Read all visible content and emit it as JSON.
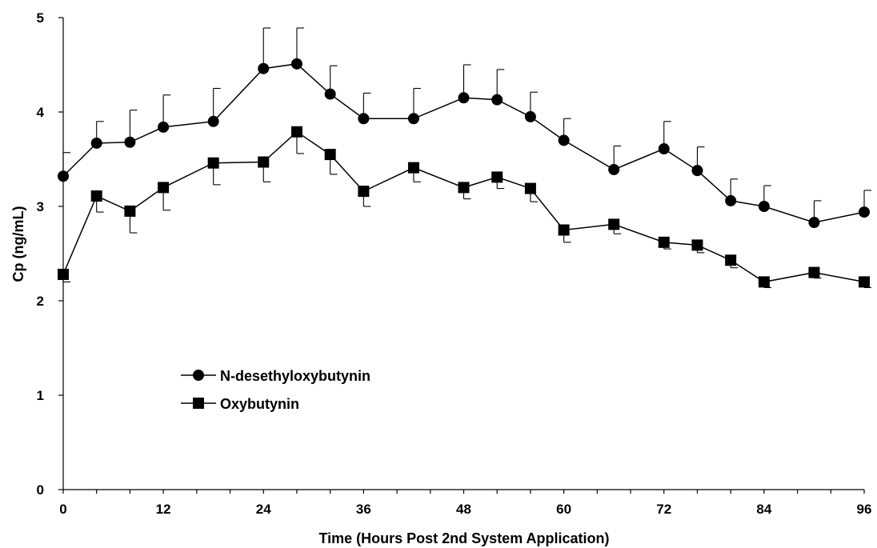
{
  "chart_data": {
    "type": "line",
    "xlabel": "Time (Hours Post 2nd System Application)",
    "ylabel": "Cp (ng/mL)",
    "xlim": [
      0,
      96
    ],
    "ylim": [
      0,
      5
    ],
    "x_ticks": [
      0,
      12,
      24,
      36,
      48,
      60,
      72,
      84,
      96
    ],
    "y_ticks": [
      0,
      1,
      2,
      3,
      4,
      5
    ],
    "x_tick_labels": [
      "0",
      "12",
      "24",
      "36",
      "48",
      "60",
      "72",
      "84",
      "96"
    ],
    "y_tick_labels": [
      "0",
      "1",
      "2",
      "3",
      "4",
      "5"
    ],
    "grid": false,
    "legend_position": "left-middle",
    "series": [
      {
        "name": "N-desethyloxybutynin",
        "marker": "circle",
        "color": "#000000",
        "x": [
          0,
          4,
          8,
          12,
          18,
          24,
          28,
          32,
          36,
          42,
          48,
          52,
          56,
          60,
          66,
          72,
          76,
          80,
          84,
          90,
          96
        ],
        "y": [
          3.32,
          3.67,
          3.68,
          3.84,
          3.9,
          4.46,
          4.51,
          4.19,
          3.93,
          3.93,
          4.15,
          4.13,
          3.95,
          3.7,
          3.39,
          3.61,
          3.38,
          3.06,
          3.0,
          2.83,
          2.94
        ],
        "error_plus": [
          0.25,
          0.23,
          0.34,
          0.34,
          0.35,
          0.43,
          0.38,
          0.3,
          0.27,
          0.32,
          0.35,
          0.32,
          0.26,
          0.23,
          0.25,
          0.29,
          0.25,
          0.23,
          0.22,
          0.23,
          0.23
        ]
      },
      {
        "name": "Oxybutynin",
        "marker": "square",
        "color": "#000000",
        "x": [
          0,
          4,
          8,
          12,
          18,
          24,
          28,
          32,
          36,
          42,
          48,
          52,
          56,
          60,
          66,
          72,
          76,
          80,
          84,
          90,
          96
        ],
        "y": [
          2.28,
          3.11,
          2.95,
          3.2,
          3.46,
          3.47,
          3.79,
          3.55,
          3.16,
          3.41,
          3.2,
          3.31,
          3.19,
          2.75,
          2.81,
          2.62,
          2.59,
          2.43,
          2.2,
          2.3,
          2.2
        ],
        "error_minus": [
          0.08,
          0.17,
          0.23,
          0.24,
          0.23,
          0.21,
          0.23,
          0.21,
          0.16,
          0.15,
          0.12,
          0.12,
          0.14,
          0.13,
          0.1,
          0.07,
          0.08,
          0.08,
          0.06,
          0.06,
          0.06
        ]
      }
    ]
  }
}
